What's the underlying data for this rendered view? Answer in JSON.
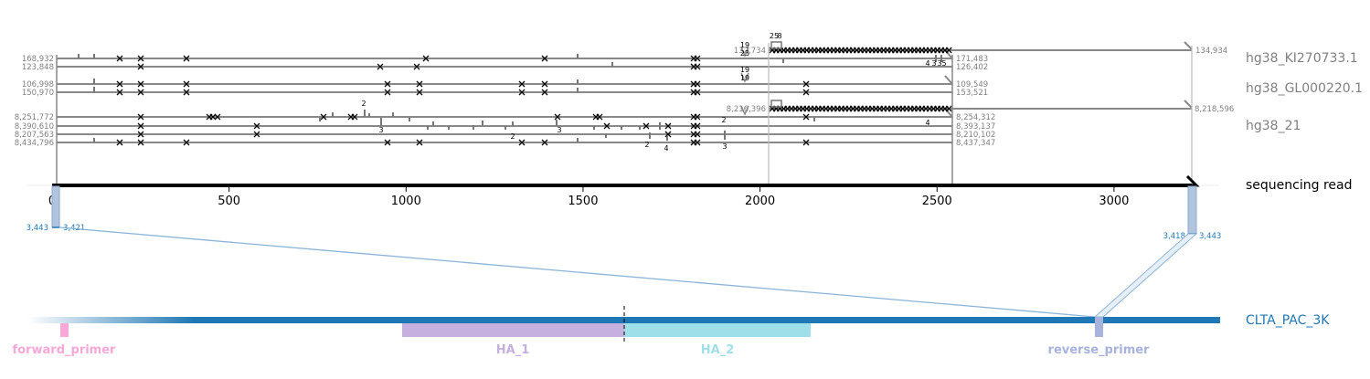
{
  "read": {
    "label": "sequencing read",
    "length": 3443,
    "ticks": [
      0,
      500,
      1000,
      1500,
      2000,
      2500,
      3000
    ],
    "ends": {
      "left": {
        "a": "3,443",
        "b": "3,421"
      },
      "right": {
        "a": "3,418",
        "b": "3,443"
      }
    }
  },
  "references": [
    {
      "name": "hg38_KI270733.1",
      "rows": [
        {
          "left": "168,932",
          "right": "171,483"
        },
        {
          "left": "123,848",
          "right": "126,402"
        }
      ],
      "extended": {
        "left": "132,734",
        "right": "134,934"
      }
    },
    {
      "name": "hg38_GL000220.1",
      "rows": [
        {
          "left": "106,998",
          "right": "109,549"
        },
        {
          "left": "150,970",
          "right": "153,521"
        }
      ]
    },
    {
      "name": "hg38_21",
      "rows": [
        {
          "left": "8,251,772",
          "right": "8,254,312"
        },
        {
          "left": "8,390,610",
          "right": "8,393,137"
        },
        {
          "left": "8,207,563",
          "right": "8,210,102"
        },
        {
          "left": "8,434,796",
          "right": "8,437,347"
        }
      ],
      "extended": {
        "left": "8,216,396",
        "right": "8,218,596"
      }
    }
  ],
  "annotation_numbers": [
    "19",
    "23",
    "19",
    "19",
    "25",
    "8",
    "2",
    "3",
    "2",
    "3",
    "2",
    "4",
    "3",
    "4",
    "2",
    "3",
    "3",
    "4",
    "5"
  ],
  "target": {
    "name": "CLTA_PAC_3K",
    "features": [
      {
        "name": "forward_primer",
        "color": "#f7a8d8"
      },
      {
        "name": "HA_1",
        "color": "#c5b0e0"
      },
      {
        "name": "HA_2",
        "color": "#9fdfe9"
      },
      {
        "name": "reverse_primer",
        "color": "#a7b3dc"
      }
    ],
    "color": "#1f77b4"
  }
}
